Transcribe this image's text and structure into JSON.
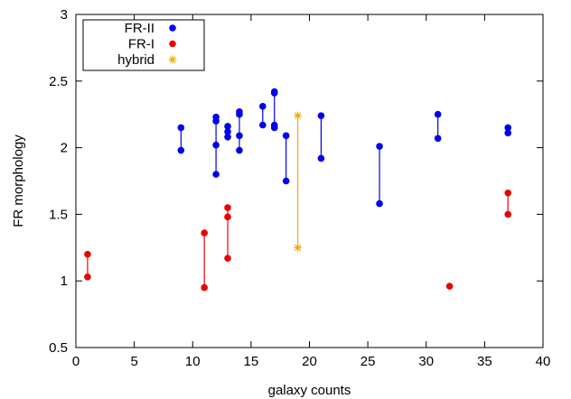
{
  "chart_data": {
    "type": "scatter",
    "xlabel": "galaxy counts",
    "ylabel": "FR morphology",
    "xlim": [
      0,
      40
    ],
    "ylim": [
      0.5,
      3
    ],
    "xticks": [
      0,
      5,
      10,
      15,
      20,
      25,
      30,
      35,
      40
    ],
    "yticks": [
      0.5,
      1,
      1.5,
      2,
      2.5,
      3
    ],
    "xtick_labels": [
      "0",
      "5",
      "10",
      "15",
      "20",
      "25",
      "30",
      "35",
      "40"
    ],
    "ytick_labels": [
      "0.5",
      "1",
      "1.5",
      "2",
      "2.5",
      "3"
    ],
    "grid": false,
    "legend_position": "top-left",
    "series": [
      {
        "name": "FR-II",
        "color": "#0000ee",
        "marker": "circle",
        "points": [
          [
            9,
            2.15
          ],
          [
            9,
            1.98
          ],
          [
            12,
            2.23
          ],
          [
            12,
            2.2
          ],
          [
            12,
            2.02
          ],
          [
            12,
            1.8
          ],
          [
            13,
            2.16
          ],
          [
            13,
            2.12
          ],
          [
            13,
            2.08
          ],
          [
            14,
            2.27
          ],
          [
            14,
            2.25
          ],
          [
            14,
            2.09
          ],
          [
            14,
            1.98
          ],
          [
            16,
            2.31
          ],
          [
            16,
            2.17
          ],
          [
            17,
            2.42
          ],
          [
            17,
            2.41
          ],
          [
            17,
            2.17
          ],
          [
            17,
            2.15
          ],
          [
            18,
            2.09
          ],
          [
            18,
            1.75
          ],
          [
            21,
            2.24
          ],
          [
            21,
            1.92
          ],
          [
            26,
            2.01
          ],
          [
            26,
            1.58
          ],
          [
            31,
            2.25
          ],
          [
            31,
            2.07
          ],
          [
            37,
            2.15
          ],
          [
            37,
            2.11
          ]
        ],
        "segments": [
          [
            [
              9,
              2.15
            ],
            [
              9,
              1.98
            ]
          ],
          [
            [
              12,
              2.23
            ],
            [
              12,
              1.8
            ]
          ],
          [
            [
              13,
              2.16
            ],
            [
              13,
              2.08
            ]
          ],
          [
            [
              14,
              2.27
            ],
            [
              14,
              1.98
            ]
          ],
          [
            [
              16,
              2.31
            ],
            [
              16,
              2.17
            ]
          ],
          [
            [
              17,
              2.42
            ],
            [
              17,
              2.15
            ]
          ],
          [
            [
              18,
              2.09
            ],
            [
              18,
              1.75
            ]
          ],
          [
            [
              21,
              2.24
            ],
            [
              21,
              1.92
            ]
          ],
          [
            [
              26,
              2.01
            ],
            [
              26,
              1.58
            ]
          ],
          [
            [
              31,
              2.25
            ],
            [
              31,
              2.07
            ]
          ],
          [
            [
              37,
              2.15
            ],
            [
              37,
              2.11
            ]
          ]
        ]
      },
      {
        "name": "FR-I",
        "color": "#ee0000",
        "marker": "circle",
        "points": [
          [
            1,
            1.2
          ],
          [
            1,
            1.03
          ],
          [
            11,
            1.36
          ],
          [
            11,
            0.95
          ],
          [
            13,
            1.55
          ],
          [
            13,
            1.48
          ],
          [
            13,
            1.17
          ],
          [
            32,
            0.96
          ],
          [
            37,
            1.66
          ],
          [
            37,
            1.5
          ]
        ],
        "segments": [
          [
            [
              1,
              1.2
            ],
            [
              1,
              1.03
            ]
          ],
          [
            [
              11,
              1.36
            ],
            [
              11,
              0.95
            ]
          ],
          [
            [
              13,
              1.55
            ],
            [
              13,
              1.17
            ]
          ],
          [
            [
              37,
              1.66
            ],
            [
              37,
              1.5
            ]
          ]
        ]
      },
      {
        "name": "hybrid",
        "color": "#f5a800",
        "marker": "star",
        "points": [
          [
            19,
            2.24
          ],
          [
            19,
            1.25
          ]
        ],
        "segments": [
          [
            [
              19,
              2.24
            ],
            [
              19,
              1.25
            ]
          ]
        ]
      }
    ]
  }
}
